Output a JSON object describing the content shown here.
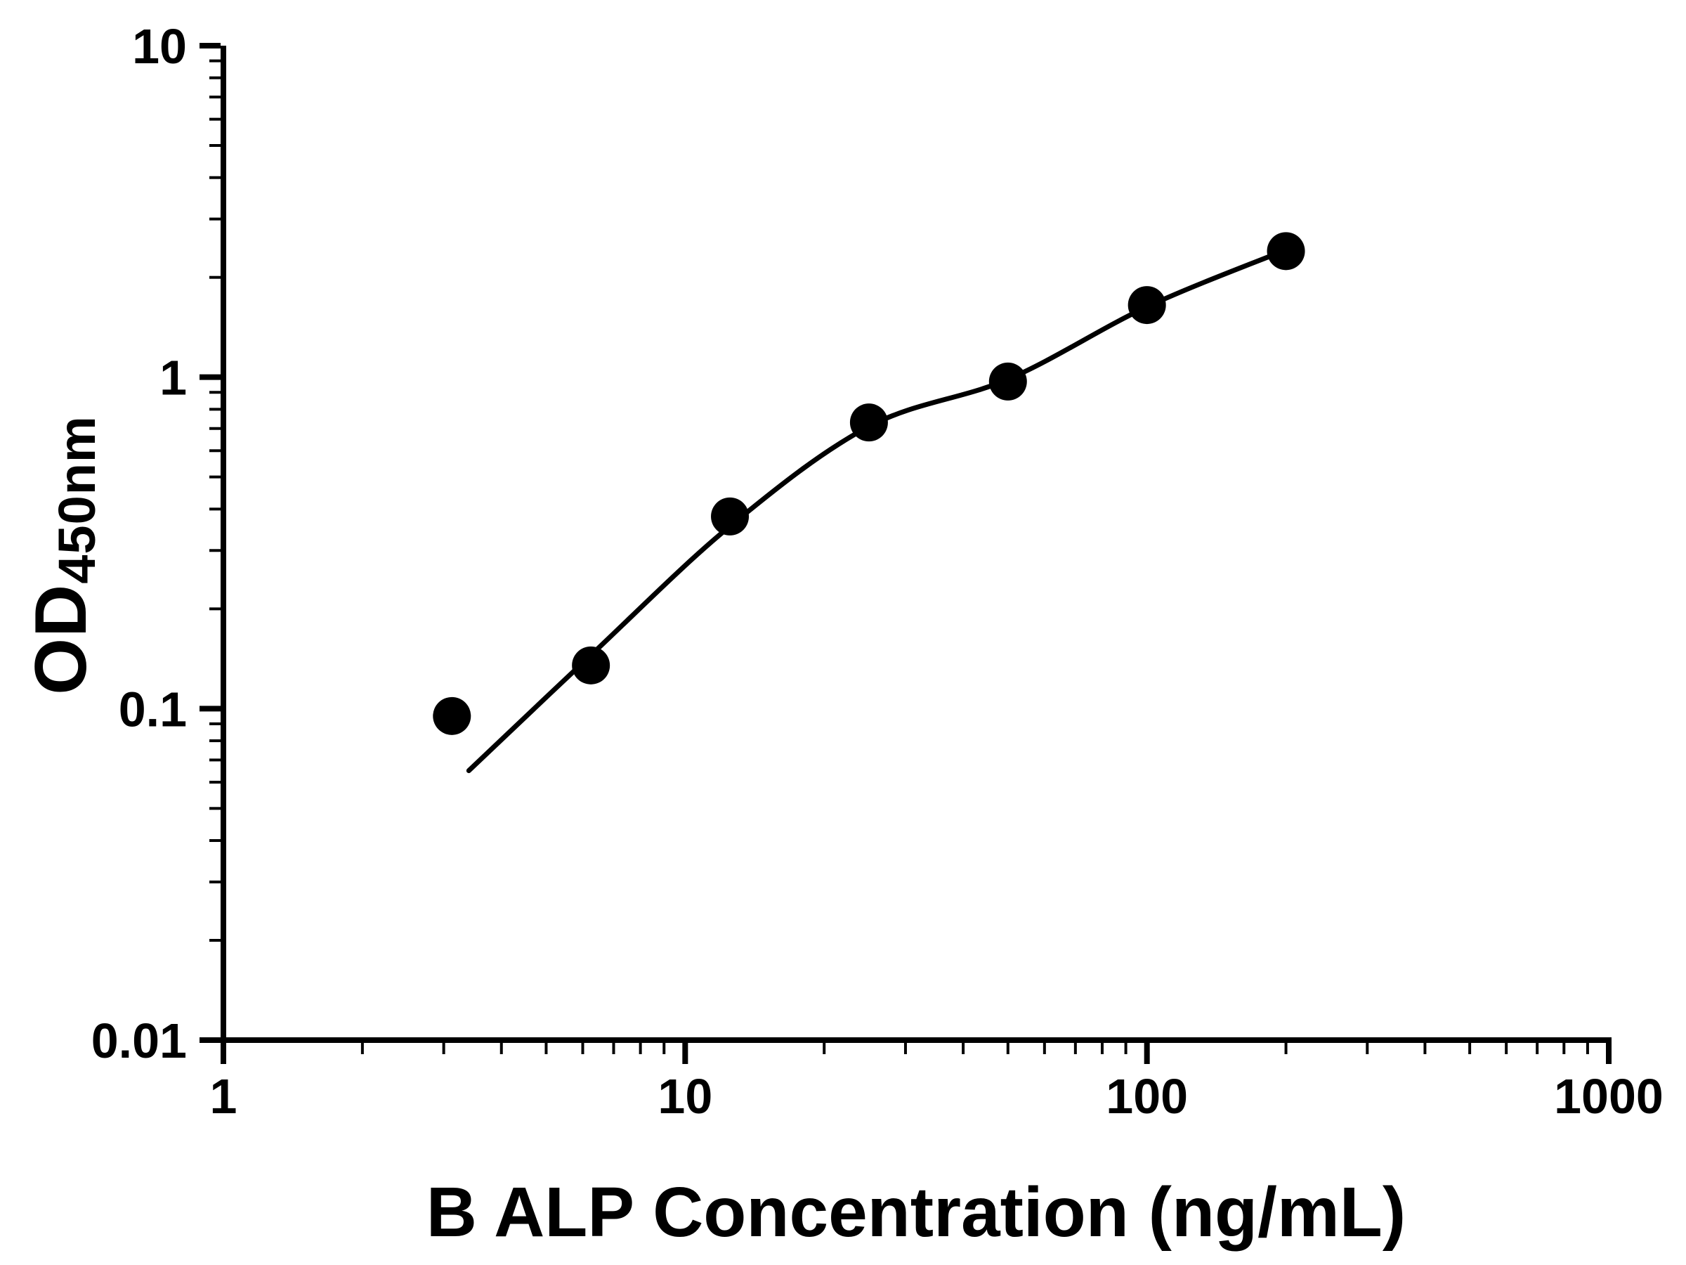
{
  "chart_data": {
    "type": "scatter",
    "title": "",
    "xlabel": "B ALP Concentration (ng/mL)",
    "ylabel_main": "OD",
    "ylabel_sub": "450nm",
    "x_scale": "log",
    "y_scale": "log",
    "xlim": [
      1,
      1000
    ],
    "ylim": [
      0.01,
      10
    ],
    "x_ticks": [
      1,
      10,
      100,
      1000
    ],
    "y_ticks": [
      0.01,
      0.1,
      1,
      10
    ],
    "x_tick_labels": [
      "1",
      "10",
      "100",
      "1000"
    ],
    "y_tick_labels": [
      "0.01",
      "0.1",
      "1",
      "10"
    ],
    "grid": false,
    "legend": false,
    "marker_color": "#000000",
    "axis_color": "#000000",
    "series": [
      {
        "name": "standard-curve-points",
        "type": "scatter",
        "marker": "circle-filled",
        "color": "#000000",
        "x": [
          3.125,
          6.25,
          12.5,
          25,
          50,
          100,
          200
        ],
        "y": [
          0.095,
          0.135,
          0.38,
          0.73,
          0.97,
          1.65,
          2.4
        ]
      }
    ],
    "trend_line": {
      "name": "fitted-standard-curve",
      "color": "#000000",
      "points_x": [
        3.4,
        6.25,
        12.5,
        25,
        50,
        100,
        200
      ],
      "points_y": [
        0.065,
        0.145,
        0.355,
        0.71,
        0.985,
        1.63,
        2.42
      ]
    }
  }
}
